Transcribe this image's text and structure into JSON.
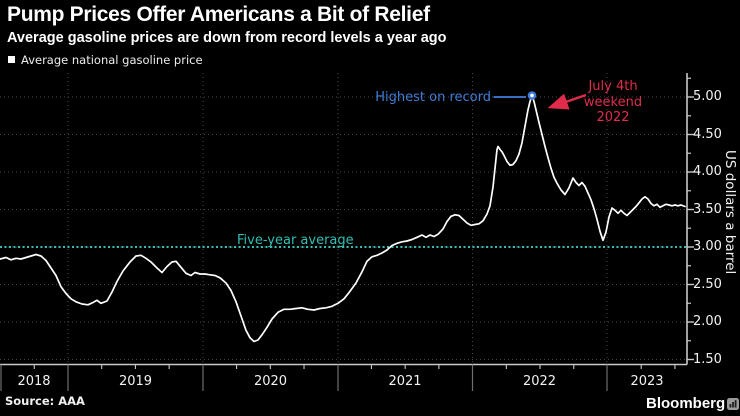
{
  "header": {
    "title": "Pump Prices Offer Americans a Bit of Relief",
    "subtitle": "Average gasoline prices are down from record levels a year ago"
  },
  "legend": {
    "label": "Average national gasoline price"
  },
  "annotations": {
    "record": {
      "label": "Highest on record"
    },
    "july4": {
      "lines": [
        "July 4th",
        "weekend",
        "2022"
      ]
    },
    "five_year": {
      "label": "Five-year average",
      "value": 3.0
    }
  },
  "y_axis": {
    "label": "US dollars a barrel",
    "tick_labels": [
      "5.00",
      "4.50",
      "4.00",
      "3.50",
      "3.00",
      "2.50",
      "2.00",
      "1.50"
    ]
  },
  "x_axis": {
    "tick_labels": [
      "2018",
      "2019",
      "2020",
      "2021",
      "2022",
      "2023"
    ]
  },
  "footer": {
    "source": "Source: AAA",
    "brand": "Bloomberg"
  },
  "colors": {
    "background": "#000000",
    "line": "#ffffff",
    "grid": "#474747",
    "axis": "#c9c9c9",
    "separator": "#6e6e6e",
    "teal": "#31beb4",
    "blue": "#3f7ed8",
    "red": "#e02c4a",
    "text": "#f2f2f2"
  },
  "chart_data": {
    "type": "line",
    "title": "Pump Prices Offer Americans a Bit of Relief",
    "subtitle": "Average gasoline prices are down from record levels a year ago",
    "xlabel": "",
    "ylabel": "US dollars a barrel",
    "ylim": [
      1.44,
      5.32
    ],
    "yticks": [
      5.0,
      4.5,
      4.0,
      3.5,
      3.0,
      2.5,
      2.0,
      1.5
    ],
    "x_year_ticks": [
      "2018",
      "2019",
      "2020",
      "2021",
      "2022",
      "2023"
    ],
    "x_range_note": "mid-2018 through spring 2023, weekly",
    "grid": "dotted",
    "legend_position": "top-left",
    "five_year_average_usd": 3.0,
    "record_high": {
      "value_usd": 5.02,
      "label": "Highest on record",
      "event": "July 4th weekend 2022"
    },
    "series": [
      {
        "name": "Average national gasoline price",
        "color": "#ffffff",
        "points": [
          [
            0,
            2.84
          ],
          [
            6,
            2.86
          ],
          [
            11,
            2.83
          ],
          [
            16,
            2.85
          ],
          [
            21,
            2.84
          ],
          [
            26,
            2.86
          ],
          [
            31,
            2.88
          ],
          [
            36,
            2.9
          ],
          [
            41,
            2.88
          ],
          [
            46,
            2.82
          ],
          [
            51,
            2.72
          ],
          [
            56,
            2.62
          ],
          [
            61,
            2.47
          ],
          [
            66,
            2.38
          ],
          [
            71,
            2.31
          ],
          [
            76,
            2.27
          ],
          [
            82,
            2.24
          ],
          [
            88,
            2.23
          ],
          [
            93,
            2.26
          ],
          [
            97,
            2.29
          ],
          [
            101,
            2.25
          ],
          [
            107,
            2.28
          ],
          [
            112,
            2.4
          ],
          [
            117,
            2.54
          ],
          [
            123,
            2.68
          ],
          [
            130,
            2.8
          ],
          [
            136,
            2.88
          ],
          [
            141,
            2.89
          ],
          [
            146,
            2.85
          ],
          [
            151,
            2.8
          ],
          [
            157,
            2.72
          ],
          [
            162,
            2.66
          ],
          [
            167,
            2.74
          ],
          [
            172,
            2.8
          ],
          [
            176,
            2.81
          ],
          [
            181,
            2.73
          ],
          [
            186,
            2.65
          ],
          [
            191,
            2.62
          ],
          [
            195,
            2.66
          ],
          [
            200,
            2.64
          ],
          [
            205,
            2.64
          ],
          [
            210,
            2.63
          ],
          [
            215,
            2.62
          ],
          [
            220,
            2.59
          ],
          [
            226,
            2.52
          ],
          [
            231,
            2.42
          ],
          [
            236,
            2.27
          ],
          [
            241,
            2.08
          ],
          [
            246,
            1.89
          ],
          [
            250,
            1.79
          ],
          [
            254,
            1.74
          ],
          [
            258,
            1.76
          ],
          [
            262,
            1.83
          ],
          [
            267,
            1.93
          ],
          [
            272,
            2.04
          ],
          [
            278,
            2.13
          ],
          [
            284,
            2.17
          ],
          [
            290,
            2.17
          ],
          [
            296,
            2.18
          ],
          [
            302,
            2.19
          ],
          [
            308,
            2.17
          ],
          [
            314,
            2.16
          ],
          [
            320,
            2.18
          ],
          [
            326,
            2.19
          ],
          [
            332,
            2.21
          ],
          [
            338,
            2.25
          ],
          [
            344,
            2.31
          ],
          [
            350,
            2.41
          ],
          [
            356,
            2.52
          ],
          [
            362,
            2.67
          ],
          [
            367,
            2.81
          ],
          [
            372,
            2.87
          ],
          [
            377,
            2.89
          ],
          [
            382,
            2.92
          ],
          [
            387,
            2.96
          ],
          [
            392,
            3.02
          ],
          [
            397,
            3.05
          ],
          [
            402,
            3.07
          ],
          [
            407,
            3.08
          ],
          [
            412,
            3.1
          ],
          [
            417,
            3.13
          ],
          [
            422,
            3.16
          ],
          [
            426,
            3.13
          ],
          [
            430,
            3.16
          ],
          [
            434,
            3.14
          ],
          [
            438,
            3.17
          ],
          [
            443,
            3.24
          ],
          [
            447,
            3.34
          ],
          [
            451,
            3.41
          ],
          [
            455,
            3.43
          ],
          [
            459,
            3.42
          ],
          [
            463,
            3.37
          ],
          [
            467,
            3.32
          ],
          [
            471,
            3.29
          ],
          [
            475,
            3.3
          ],
          [
            479,
            3.31
          ],
          [
            483,
            3.35
          ],
          [
            487,
            3.44
          ],
          [
            490,
            3.55
          ],
          [
            493,
            3.8
          ],
          [
            495,
            4.05
          ],
          [
            497,
            4.3
          ],
          [
            498,
            4.34
          ],
          [
            500,
            4.3
          ],
          [
            502,
            4.27
          ],
          [
            504,
            4.22
          ],
          [
            507,
            4.14
          ],
          [
            510,
            4.09
          ],
          [
            513,
            4.1
          ],
          [
            516,
            4.15
          ],
          [
            519,
            4.24
          ],
          [
            522,
            4.39
          ],
          [
            525,
            4.61
          ],
          [
            528,
            4.83
          ],
          [
            530,
            4.94
          ],
          [
            532,
            5.02
          ],
          [
            534,
            4.94
          ],
          [
            536,
            4.83
          ],
          [
            539,
            4.66
          ],
          [
            542,
            4.5
          ],
          [
            545,
            4.34
          ],
          [
            548,
            4.19
          ],
          [
            551,
            4.05
          ],
          [
            554,
            3.93
          ],
          [
            557,
            3.85
          ],
          [
            561,
            3.76
          ],
          [
            565,
            3.7
          ],
          [
            569,
            3.79
          ],
          [
            573,
            3.92
          ],
          [
            576,
            3.86
          ],
          [
            579,
            3.82
          ],
          [
            582,
            3.86
          ],
          [
            585,
            3.81
          ],
          [
            588,
            3.72
          ],
          [
            591,
            3.63
          ],
          [
            594,
            3.51
          ],
          [
            597,
            3.37
          ],
          [
            600,
            3.21
          ],
          [
            603,
            3.09
          ],
          [
            606,
            3.2
          ],
          [
            609,
            3.4
          ],
          [
            612,
            3.52
          ],
          [
            615,
            3.49
          ],
          [
            618,
            3.45
          ],
          [
            621,
            3.49
          ],
          [
            624,
            3.45
          ],
          [
            627,
            3.42
          ],
          [
            630,
            3.46
          ],
          [
            633,
            3.5
          ],
          [
            636,
            3.54
          ],
          [
            639,
            3.59
          ],
          [
            642,
            3.64
          ],
          [
            645,
            3.67
          ],
          [
            648,
            3.64
          ],
          [
            651,
            3.58
          ],
          [
            654,
            3.55
          ],
          [
            657,
            3.57
          ],
          [
            660,
            3.53
          ],
          [
            663,
            3.55
          ],
          [
            666,
            3.57
          ],
          [
            669,
            3.56
          ],
          [
            672,
            3.55
          ],
          [
            675,
            3.56
          ],
          [
            678,
            3.55
          ],
          [
            681,
            3.56
          ],
          [
            685,
            3.54
          ]
        ]
      }
    ]
  }
}
